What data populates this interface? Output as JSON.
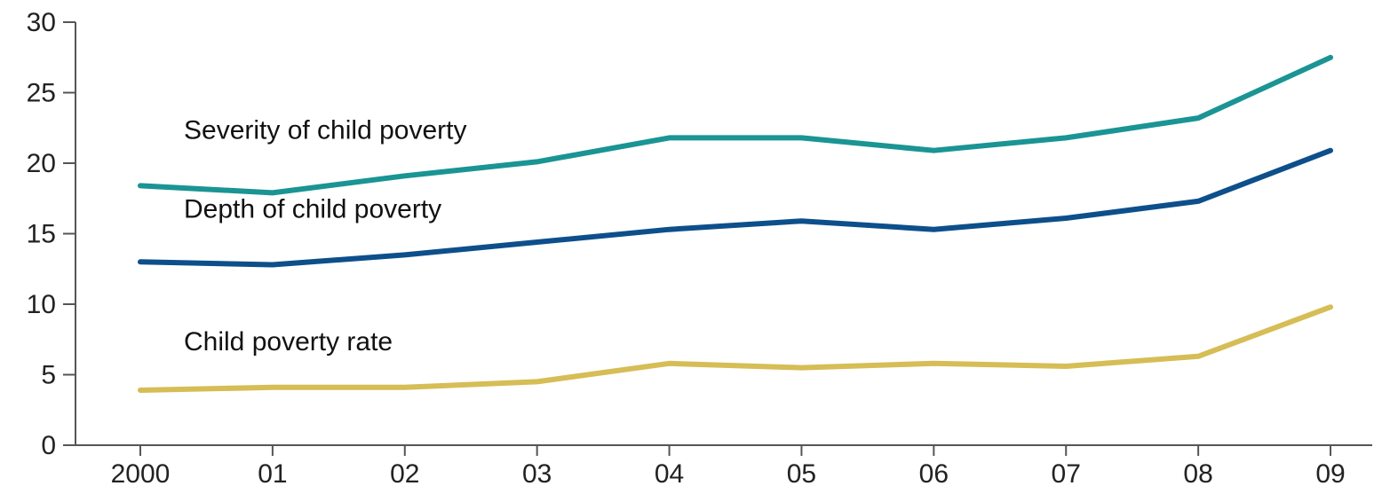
{
  "chart_data": {
    "type": "line",
    "categories": [
      "2000",
      "01",
      "02",
      "03",
      "04",
      "05",
      "06",
      "07",
      "08",
      "09"
    ],
    "ylim": [
      0,
      30
    ],
    "yticks": [
      0,
      5,
      10,
      15,
      20,
      25,
      30
    ],
    "grid": false,
    "series": [
      {
        "name": "Severity of child poverty",
        "color": "#1a9494",
        "values": [
          18.4,
          17.9,
          19.1,
          20.1,
          21.8,
          21.8,
          20.9,
          21.8,
          23.2,
          27.5
        ]
      },
      {
        "name": "Depth of child poverty",
        "color": "#0d4f8b",
        "values": [
          13.0,
          12.8,
          13.5,
          14.4,
          15.3,
          15.9,
          15.3,
          16.1,
          17.3,
          20.9
        ]
      },
      {
        "name": "Child poverty rate",
        "color": "#d6bd55",
        "values": [
          3.9,
          4.1,
          4.1,
          4.5,
          5.8,
          5.5,
          5.8,
          5.6,
          6.3,
          9.8
        ]
      }
    ]
  }
}
